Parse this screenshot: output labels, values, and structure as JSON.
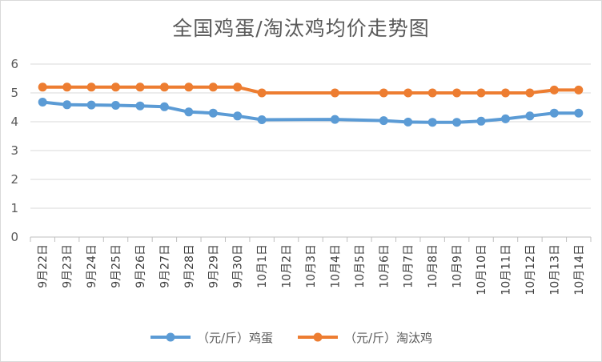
{
  "chart_data": {
    "type": "line",
    "title": "全国鸡蛋/淘汰鸡均价走势图",
    "xlabel": "",
    "ylabel": "",
    "ylim": [
      0,
      6
    ],
    "yticks": [
      0,
      1,
      2,
      3,
      4,
      5,
      6
    ],
    "grid": true,
    "legend_position": "bottom",
    "categories": [
      "9月22日",
      "9月23日",
      "9月24日",
      "9月25日",
      "9月26日",
      "9月27日",
      "9月28日",
      "9月29日",
      "9月30日",
      "10月1日",
      "10月2日",
      "10月3日",
      "10月4日",
      "10月5日",
      "10月6日",
      "10月7日",
      "10月8日",
      "10月9日",
      "10月10日",
      "10月11日",
      "10月12日",
      "10月13日",
      "10月14日"
    ],
    "series": [
      {
        "name": "（元/斤）鸡蛋",
        "color": "#5b9bd5",
        "values": [
          4.68,
          4.59,
          4.58,
          4.57,
          4.55,
          4.52,
          4.34,
          4.3,
          4.2,
          4.07,
          null,
          null,
          4.08,
          null,
          4.04,
          3.99,
          3.98,
          3.98,
          4.02,
          4.1,
          4.2,
          4.3,
          4.3
        ]
      },
      {
        "name": "（元/斤）淘汰鸡",
        "color": "#ed7d31",
        "values": [
          5.2,
          5.2,
          5.2,
          5.2,
          5.2,
          5.2,
          5.2,
          5.2,
          5.2,
          5.0,
          null,
          null,
          5.0,
          null,
          5.0,
          5.0,
          5.0,
          5.0,
          5.0,
          5.0,
          5.0,
          5.1,
          5.1
        ]
      }
    ]
  }
}
